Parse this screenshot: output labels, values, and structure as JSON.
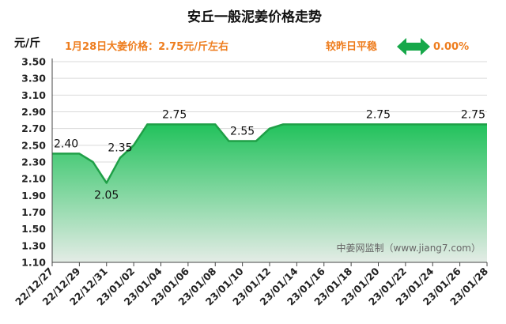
{
  "title": "安丘一般泥姜价格走势",
  "unit_label": "元/斤",
  "price_info": "1月28日大姜价格：2.75元/斤左右",
  "comparison": {
    "label": "较昨日平稳",
    "value": "0.00%",
    "icon": "double-arrow-icon",
    "icon_color": "#17a84a"
  },
  "watermark": "中姜网监制（www.jiang7.com）",
  "colors": {
    "line": "#1f9f47",
    "fill_top": "#22c25c",
    "fill_bottom": "#e4ece6",
    "accent": "#ee7d1e"
  },
  "chart_data": {
    "type": "area",
    "ylim": [
      1.1,
      3.5
    ],
    "yticks": [
      "1.10",
      "1.30",
      "1.50",
      "1.70",
      "1.90",
      "2.10",
      "2.30",
      "2.50",
      "2.70",
      "2.90",
      "3.10",
      "3.30",
      "3.50"
    ],
    "xticks": [
      "22/12/27",
      "22/12/29",
      "22/12/31",
      "23/01/02",
      "23/01/04",
      "23/01/06",
      "23/01/08",
      "23/01/10",
      "23/01/12",
      "23/01/14",
      "23/01/16",
      "23/01/18",
      "23/01/20",
      "23/01/22",
      "23/01/24",
      "23/01/26",
      "23/01/28"
    ],
    "x": [
      "22/12/27",
      "22/12/28",
      "22/12/29",
      "22/12/30",
      "22/12/31",
      "23/01/01",
      "23/01/02",
      "23/01/03",
      "23/01/04",
      "23/01/05",
      "23/01/06",
      "23/01/07",
      "23/01/08",
      "23/01/09",
      "23/01/10",
      "23/01/11",
      "23/01/12",
      "23/01/13",
      "23/01/14",
      "23/01/15",
      "23/01/16",
      "23/01/17",
      "23/01/18",
      "23/01/19",
      "23/01/20",
      "23/01/21",
      "23/01/22",
      "23/01/23",
      "23/01/24",
      "23/01/25",
      "23/01/26",
      "23/01/27",
      "23/01/28"
    ],
    "values": [
      2.4,
      2.4,
      2.4,
      2.3,
      2.05,
      2.35,
      2.5,
      2.75,
      2.75,
      2.75,
      2.75,
      2.75,
      2.75,
      2.55,
      2.55,
      2.55,
      2.7,
      2.75,
      2.75,
      2.75,
      2.75,
      2.75,
      2.75,
      2.75,
      2.75,
      2.75,
      2.75,
      2.75,
      2.75,
      2.75,
      2.75,
      2.75,
      2.75
    ],
    "data_labels": [
      {
        "x": "22/12/27",
        "text": "2.40"
      },
      {
        "x": "22/12/31",
        "text": "2.05"
      },
      {
        "x": "23/01/01",
        "text": "2.35"
      },
      {
        "x": "23/01/05",
        "text": "2.75"
      },
      {
        "x": "23/01/10",
        "text": "2.55"
      },
      {
        "x": "23/01/20",
        "text": "2.75"
      },
      {
        "x": "23/01/28",
        "text": "2.75"
      }
    ]
  }
}
